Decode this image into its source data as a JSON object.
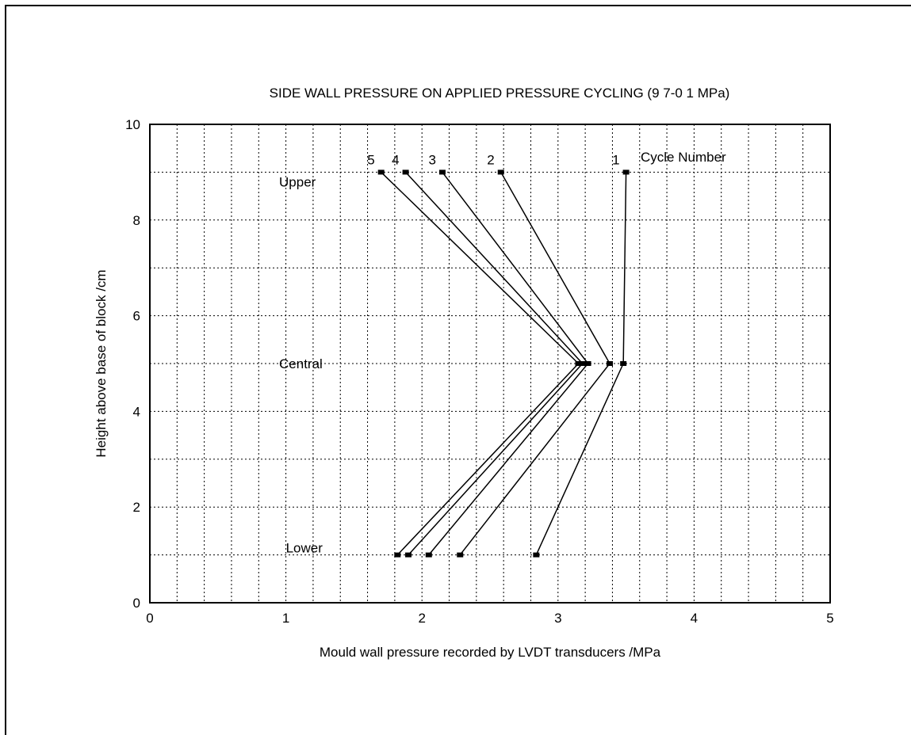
{
  "chart_data": {
    "type": "line",
    "title": "SIDE WALL PRESSURE ON APPLIED PRESSURE CYCLING (9 7-0 1 MPa)",
    "xlabel": "Mould wall pressure recorded by LVDT transducers /MPa",
    "ylabel": "Height above base of block /cm",
    "xlim": [
      0,
      5
    ],
    "ylim": [
      0,
      10
    ],
    "x_ticks": [
      "0",
      "1",
      "2",
      "3",
      "4",
      "5"
    ],
    "y_ticks": [
      "0",
      "2",
      "4",
      "6",
      "8",
      "10"
    ],
    "grid": true,
    "minor_grid_x": 0.2,
    "minor_grid_y": 1,
    "legend_title": "Cycle Number",
    "series": [
      {
        "name": "1",
        "points": [
          [
            3.5,
            9
          ],
          [
            3.48,
            5
          ],
          [
            2.84,
            1
          ]
        ]
      },
      {
        "name": "2",
        "points": [
          [
            2.58,
            9
          ],
          [
            3.38,
            5
          ],
          [
            2.28,
            1
          ]
        ]
      },
      {
        "name": "3",
        "points": [
          [
            2.15,
            9
          ],
          [
            3.22,
            5
          ],
          [
            2.05,
            1
          ]
        ]
      },
      {
        "name": "4",
        "points": [
          [
            1.88,
            9
          ],
          [
            3.18,
            5
          ],
          [
            1.9,
            1
          ]
        ]
      },
      {
        "name": "5",
        "points": [
          [
            1.7,
            9
          ],
          [
            3.15,
            5
          ],
          [
            1.82,
            1
          ]
        ]
      }
    ],
    "annotations": [
      {
        "text": "Upper",
        "x": 0.95,
        "y": 8.8
      },
      {
        "text": "Central",
        "x": 0.95,
        "y": 5
      },
      {
        "text": "Lower",
        "x": 1.0,
        "y": 1.15
      }
    ]
  }
}
